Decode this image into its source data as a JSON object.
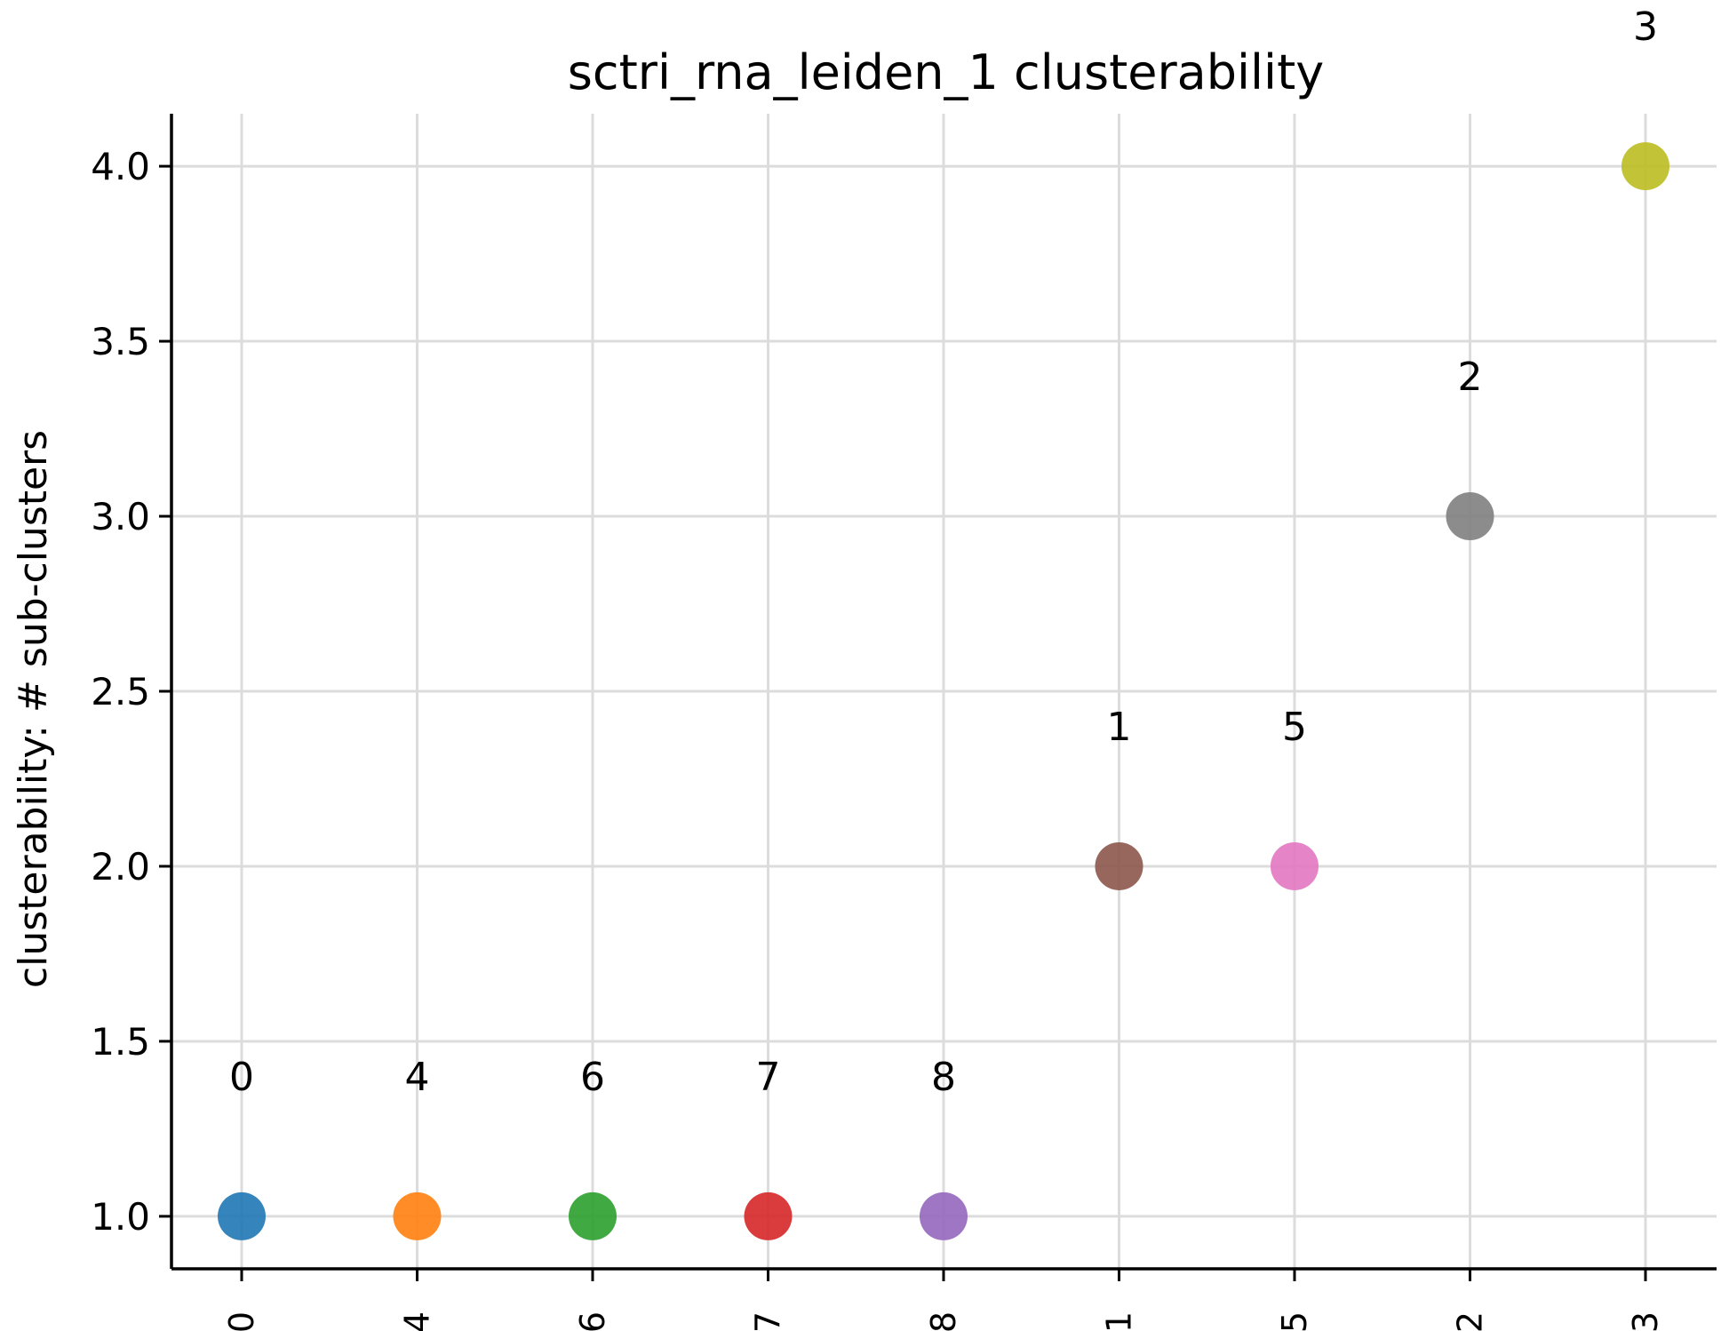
{
  "chart_data": {
    "type": "scatter",
    "title": "sctri_rna_leiden_1 clusterability",
    "ylabel": "clusterability: # sub-clusters",
    "xlabel": "",
    "categories": [
      "0",
      "4",
      "6",
      "7",
      "8",
      "1",
      "5",
      "2",
      "3"
    ],
    "values": [
      1,
      1,
      1,
      1,
      1,
      2,
      2,
      3,
      4
    ],
    "point_labels": [
      "0",
      "4",
      "6",
      "7",
      "8",
      "1",
      "5",
      "2",
      "3"
    ],
    "colors": [
      "#1f77b4",
      "#ff7f0e",
      "#2ca02c",
      "#d62728",
      "#9467bd",
      "#8c564b",
      "#e377c2",
      "#7f7f7f",
      "#bcbd22"
    ],
    "ylim": [
      0.85,
      4.15
    ],
    "yticks": [
      "1.0",
      "1.5",
      "2.0",
      "2.5",
      "3.0",
      "3.5",
      "4.0"
    ],
    "grid": true,
    "legend": "none"
  }
}
